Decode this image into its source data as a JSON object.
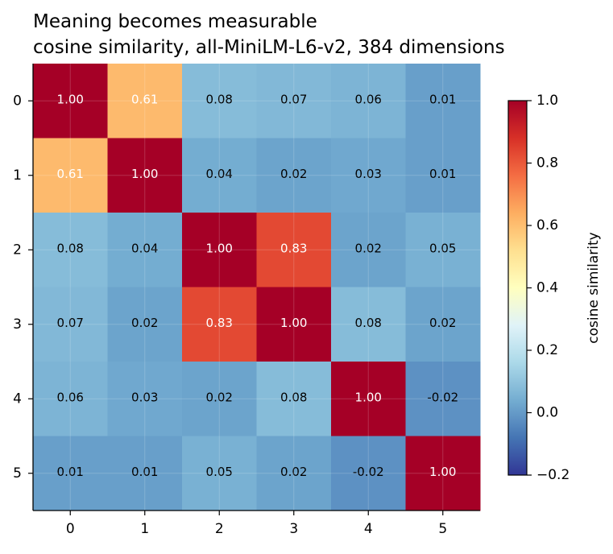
{
  "chart_data": {
    "type": "heatmap",
    "title": "Meaning becomes measurable",
    "subtitle": "cosine similarity, all-MiniLM-L6-v2, 384 dimensions",
    "row_labels": [
      "0",
      "1",
      "2",
      "3",
      "4",
      "5"
    ],
    "col_labels": [
      "0",
      "1",
      "2",
      "3",
      "4",
      "5"
    ],
    "values": [
      [
        1.0,
        0.61,
        0.08,
        0.07,
        0.06,
        0.01
      ],
      [
        0.61,
        1.0,
        0.04,
        0.02,
        0.03,
        0.01
      ],
      [
        0.08,
        0.04,
        1.0,
        0.83,
        0.02,
        0.05
      ],
      [
        0.07,
        0.02,
        0.83,
        1.0,
        0.08,
        0.02
      ],
      [
        0.06,
        0.03,
        0.02,
        0.08,
        1.0,
        -0.02
      ],
      [
        0.01,
        0.01,
        0.05,
        0.02,
        -0.02,
        1.0
      ]
    ],
    "value_format": "2 decimals",
    "colormap": "RdYlBu_r",
    "vmin": -0.2,
    "vmax": 1.0,
    "grid": true,
    "colorbar": {
      "label": "cosine similarity",
      "ticks": [
        -0.2,
        0.0,
        0.2,
        0.4,
        0.6,
        0.8,
        1.0
      ],
      "tick_labels": [
        "−0.2",
        "0.0",
        "0.2",
        "0.4",
        "0.6",
        "0.8",
        "1.0"
      ],
      "placement": "right"
    }
  }
}
